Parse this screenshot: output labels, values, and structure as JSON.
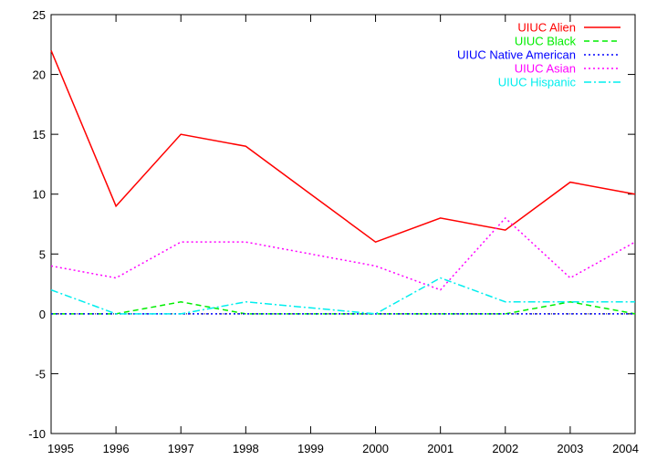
{
  "chart_data": {
    "type": "line",
    "x": [
      1995,
      1996,
      1997,
      1998,
      1999,
      2000,
      2001,
      2002,
      2003,
      2004
    ],
    "xlim": [
      1995,
      2004
    ],
    "ylim": [
      -10,
      25
    ],
    "x_ticks": [
      "1995",
      "1996",
      "1997",
      "1998",
      "1999",
      "2000",
      "2001",
      "2002",
      "2003",
      "2004"
    ],
    "y_ticks": [
      "-10",
      "-5",
      "0",
      "5",
      "10",
      "15",
      "20",
      "25"
    ],
    "grid": false,
    "legend_position": "top-right",
    "series": [
      {
        "name": "UIUC Alien",
        "color": "#ff0000",
        "dash": "solid",
        "values": [
          22,
          9,
          15,
          14,
          10,
          6,
          8,
          7,
          11,
          10
        ]
      },
      {
        "name": "UIUC Black",
        "color": "#00ee00",
        "dash": "dashed",
        "values": [
          0,
          0,
          1,
          0,
          0,
          0,
          0,
          0,
          1,
          0
        ]
      },
      {
        "name": "UIUC Native American",
        "color": "#0000ff",
        "dash": "dotted",
        "values": [
          0,
          0,
          0,
          0,
          0,
          0,
          0,
          0,
          0,
          0
        ]
      },
      {
        "name": "UIUC Asian",
        "color": "#ff00ff",
        "dash": "dotted",
        "values": [
          4,
          3,
          6,
          6,
          5,
          4,
          2,
          8,
          3,
          6
        ]
      },
      {
        "name": "UIUC Hispanic",
        "color": "#00eeee",
        "dash": "dash-dot",
        "values": [
          2,
          0,
          0,
          1,
          0.5,
          0,
          3,
          1,
          1,
          1
        ]
      }
    ]
  }
}
